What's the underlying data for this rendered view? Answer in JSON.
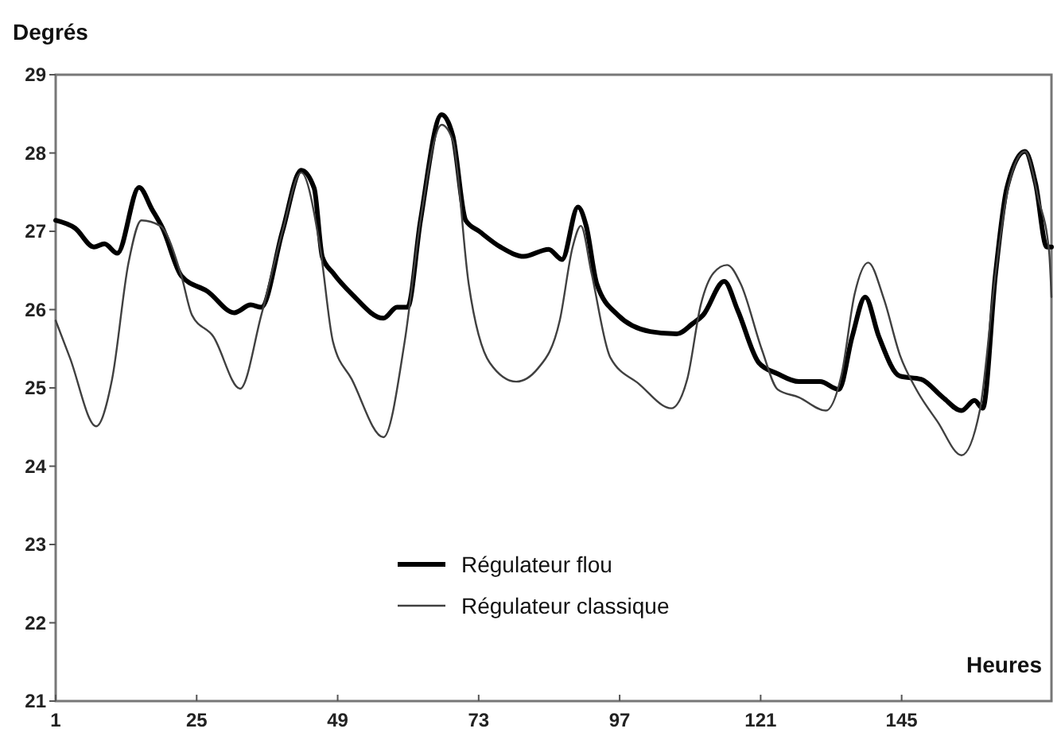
{
  "chart_data": {
    "type": "line",
    "xlabel": "Heures",
    "ylabel": "Degrés",
    "xlim": [
      1,
      170.5
    ],
    "xticks": [
      1,
      25,
      49,
      73,
      97,
      121,
      145
    ],
    "ylim": [
      21,
      29
    ],
    "yticks": [
      21,
      22,
      23,
      24,
      25,
      26,
      27,
      28,
      29
    ],
    "grid": false,
    "legend": "bottom",
    "marker": "none",
    "line_style": "solid",
    "series": [
      {
        "name": "Régulateur flou",
        "color": "#000000",
        "x": [
          1,
          4.3,
          7.5,
          9.3,
          11.5,
          15.2,
          17.4,
          19.2,
          22.4,
          26.9,
          31.4,
          34.2,
          36,
          39.6,
          42.8,
          45,
          46.4,
          48.2,
          51.4,
          56.8,
          59.1,
          60.9,
          63.1,
          66.7,
          68.6,
          70.8,
          73.1,
          76.7,
          80.7,
          84.9,
          87.2,
          89.9,
          91.3,
          93.1,
          96.7,
          102.2,
          106.7,
          109.4,
          111.2,
          114.8,
          117.1,
          120.7,
          123.9,
          127.5,
          131.1,
          134.3,
          136.6,
          138.8,
          141.1,
          144.7,
          148.3,
          152,
          155.2,
          157.4,
          158.8,
          161,
          162.9,
          166,
          167.8,
          169.7,
          170.5
        ],
        "values": [
          27.14,
          27.04,
          26.8,
          26.84,
          26.72,
          27.56,
          27.28,
          27.04,
          26.43,
          26.23,
          25.96,
          26.06,
          26.03,
          27.0,
          27.78,
          27.55,
          26.67,
          26.47,
          26.2,
          25.89,
          26.03,
          26.03,
          27.14,
          28.49,
          28.22,
          27.14,
          27.0,
          26.8,
          26.68,
          26.77,
          26.64,
          27.31,
          27.07,
          26.33,
          25.93,
          25.72,
          25.69,
          25.82,
          25.93,
          26.36,
          25.99,
          25.32,
          25.18,
          25.08,
          25.08,
          24.98,
          25.66,
          26.16,
          25.66,
          25.15,
          25.11,
          24.88,
          24.71,
          24.84,
          24.74,
          26.47,
          27.55,
          28.02,
          27.61,
          26.8,
          26.8
        ]
      },
      {
        "name": "Régulateur classique",
        "color": "#404040",
        "x": [
          1,
          3.4,
          7.9,
          10.6,
          13.4,
          15.6,
          18.8,
          22.4,
          24.2,
          27.8,
          32.4,
          36,
          39.6,
          42.8,
          46,
          48.2,
          51.4,
          56.8,
          60.4,
          63.1,
          66.7,
          68.6,
          71.3,
          74.9,
          79.4,
          83.1,
          86.8,
          89,
          90.4,
          92.2,
          95.4,
          100.3,
          105.8,
          108.5,
          110.8,
          113,
          115.3,
          117.6,
          121.2,
          123.9,
          127.5,
          132.1,
          134.8,
          137,
          139.3,
          142,
          144.7,
          147.5,
          151.1,
          155.2,
          158.3,
          161,
          163.3,
          166,
          168.3,
          170.1,
          170.5
        ],
        "values": [
          25.86,
          25.39,
          24.51,
          25.11,
          26.6,
          27.14,
          27.07,
          26.43,
          25.93,
          25.66,
          24.99,
          25.93,
          27.0,
          27.75,
          26.8,
          25.59,
          25.11,
          24.37,
          25.59,
          27.14,
          28.36,
          28.16,
          26.33,
          25.32,
          25.08,
          25.25,
          25.86,
          26.8,
          27.07,
          26.47,
          25.39,
          25.05,
          24.74,
          25.11,
          26.06,
          26.47,
          26.57,
          26.33,
          25.49,
          24.98,
          24.88,
          24.71,
          25.18,
          26.2,
          26.6,
          26.13,
          25.42,
          24.98,
          24.57,
          24.14,
          24.71,
          26.47,
          27.61,
          28.02,
          27.41,
          26.74,
          26.16
        ]
      }
    ]
  }
}
